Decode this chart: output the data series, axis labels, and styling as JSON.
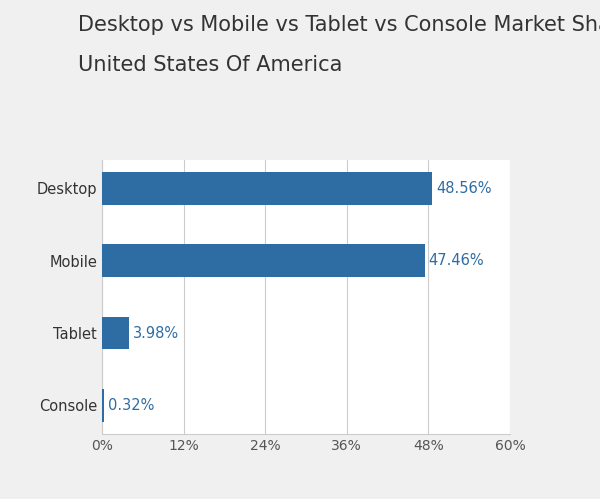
{
  "title_line1": "Desktop vs Mobile vs Tablet vs Console Market Share",
  "title_line2": "United States Of America",
  "categories": [
    "Console",
    "Tablet",
    "Mobile",
    "Desktop"
  ],
  "values": [
    0.32,
    3.98,
    47.46,
    48.56
  ],
  "labels": [
    "0.32%",
    "3.98%",
    "47.46%",
    "48.56%"
  ],
  "bar_color": "#2e6da4",
  "label_color": "#2e6da4",
  "background_color": "#f0f0f0",
  "plot_background_color": "#ffffff",
  "xlim": [
    0,
    60
  ],
  "xticks": [
    0,
    12,
    24,
    36,
    48,
    60
  ],
  "xtick_labels": [
    "0%",
    "12%",
    "24%",
    "36%",
    "48%",
    "60%"
  ],
  "title_fontsize": 15,
  "tick_label_fontsize": 10,
  "bar_label_fontsize": 10.5,
  "ytick_fontsize": 10.5,
  "bar_height": 0.45,
  "grid_color": "#cccccc",
  "title_color": "#333333"
}
